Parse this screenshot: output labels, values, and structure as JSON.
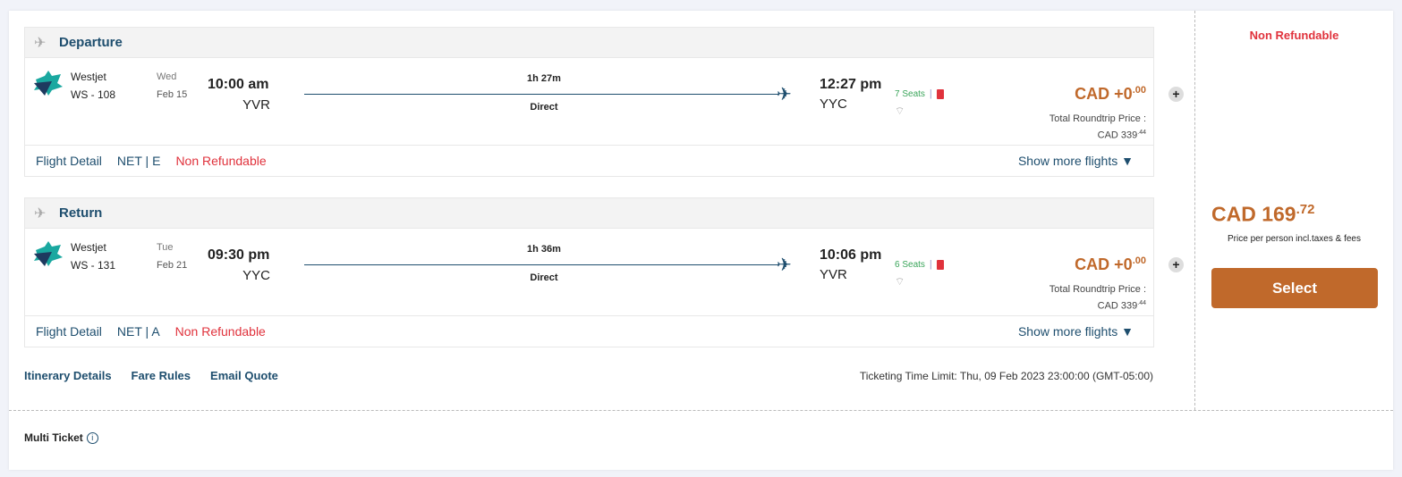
{
  "segments": [
    {
      "title": "Departure",
      "airline": "Westjet",
      "flight_no": "WS - 108",
      "day": "Wed",
      "date": "Feb 15",
      "dep_time": "10:00 am",
      "dep_code": "YVR",
      "duration": "1h 27m",
      "stops": "Direct",
      "arr_time": "12:27 pm",
      "arr_code": "YYC",
      "seats": "7 Seats",
      "price": "CAD +0",
      "price_cents": ".00",
      "total_label": "Total Roundtrip Price :",
      "total_value": "CAD 339",
      "total_cents": ".44",
      "flight_detail": "Flight Detail",
      "fare_class": "NET | E",
      "refund": "Non Refundable",
      "show_more": "Show more flights"
    },
    {
      "title": "Return",
      "airline": "Westjet",
      "flight_no": "WS - 131",
      "day": "Tue",
      "date": "Feb 21",
      "dep_time": "09:30 pm",
      "dep_code": "YYC",
      "duration": "1h 36m",
      "stops": "Direct",
      "arr_time": "10:06 pm",
      "arr_code": "YVR",
      "seats": "6 Seats",
      "price": "CAD +0",
      "price_cents": ".00",
      "total_label": "Total Roundtrip Price :",
      "total_value": "CAD 339",
      "total_cents": ".44",
      "flight_detail": "Flight Detail",
      "fare_class": "NET | A",
      "refund": "Non Refundable",
      "show_more": "Show more flights"
    }
  ],
  "links": {
    "itinerary": "Itinerary Details",
    "fare_rules": "Fare Rules",
    "email_quote": "Email Quote"
  },
  "ticketing_limit": "Ticketing Time Limit: Thu, 09 Feb 2023 23:00:00 (GMT-05:00)",
  "multi_ticket": "Multi Ticket",
  "side": {
    "refund": "Non Refundable",
    "price": "CAD 169",
    "price_cents": ".72",
    "price_note": "Price per person incl.taxes & fees",
    "select": "Select"
  },
  "colors": {
    "accent": "#c0692b",
    "primary": "#1e4e6e",
    "danger": "#e0323c"
  }
}
